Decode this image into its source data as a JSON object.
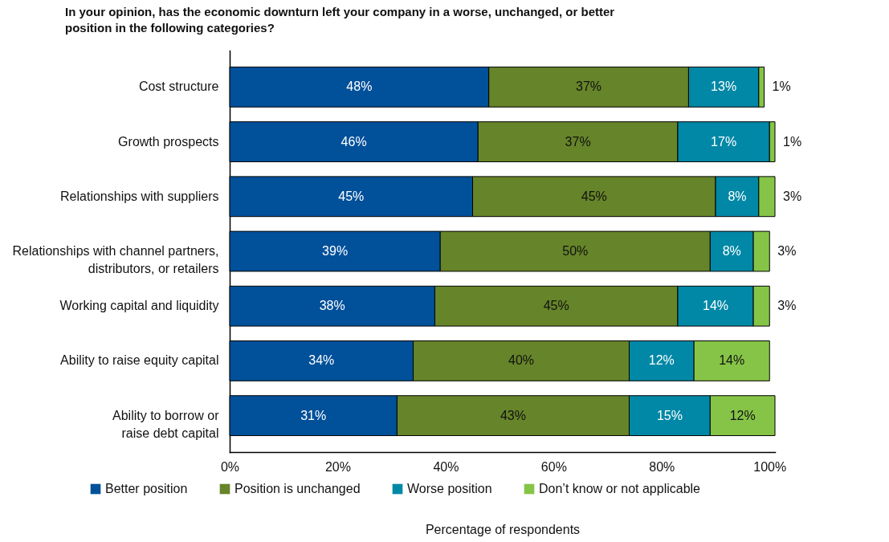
{
  "chart_data": {
    "type": "bar",
    "orientation": "horizontal",
    "stacked": true,
    "title": "In your opinion, has the economic downturn left your company in a worse, unchanged, or better position in the following categories?",
    "xlabel": "Percentage of respondents",
    "categories": [
      "Cost structure",
      "Growth prospects",
      "Relationships with suppliers",
      "Relationships with channel partners,\ndistributors, or retailers",
      "Working capital and liquidity",
      "Ability to raise equity capital",
      "Ability to borrow or\nraise debt capital"
    ],
    "series": [
      {
        "name": "Better position",
        "color": "#00509a",
        "values": [
          48,
          46,
          45,
          39,
          38,
          34,
          31
        ],
        "value_labels": [
          "48%",
          "46%",
          "45%",
          "39%",
          "38%",
          "34%",
          "31%"
        ]
      },
      {
        "name": "Position is unchanged",
        "color": "#668429",
        "values": [
          37,
          37,
          45,
          50,
          45,
          40,
          43
        ],
        "value_labels": [
          "37%",
          "37%",
          "45%",
          "50%",
          "45%",
          "40%",
          "43%"
        ]
      },
      {
        "name": "Worse position",
        "color": "#0088a6",
        "values": [
          13,
          17,
          8,
          8,
          14,
          12,
          15
        ],
        "value_labels": [
          "13%",
          "17%",
          "8%",
          "8%",
          "14%",
          "12%",
          "15%"
        ]
      },
      {
        "name": "Don’t know or not applicable",
        "color": "#86c447",
        "values": [
          1,
          1,
          3,
          3,
          3,
          14,
          12
        ],
        "value_labels": [
          "1%",
          "1%",
          "3%",
          "3%",
          "3%",
          "14%",
          "12%"
        ]
      }
    ],
    "xlim": [
      0,
      101
    ],
    "xticks": [
      {
        "value": 0,
        "label": "0%"
      },
      {
        "value": 20,
        "label": "20%"
      },
      {
        "value": 40,
        "label": "40%"
      },
      {
        "value": 60,
        "label": "60%"
      },
      {
        "value": 80,
        "label": "80%"
      },
      {
        "value": 100,
        "label": "100%"
      }
    ],
    "grid": false,
    "legend": "bottom"
  }
}
